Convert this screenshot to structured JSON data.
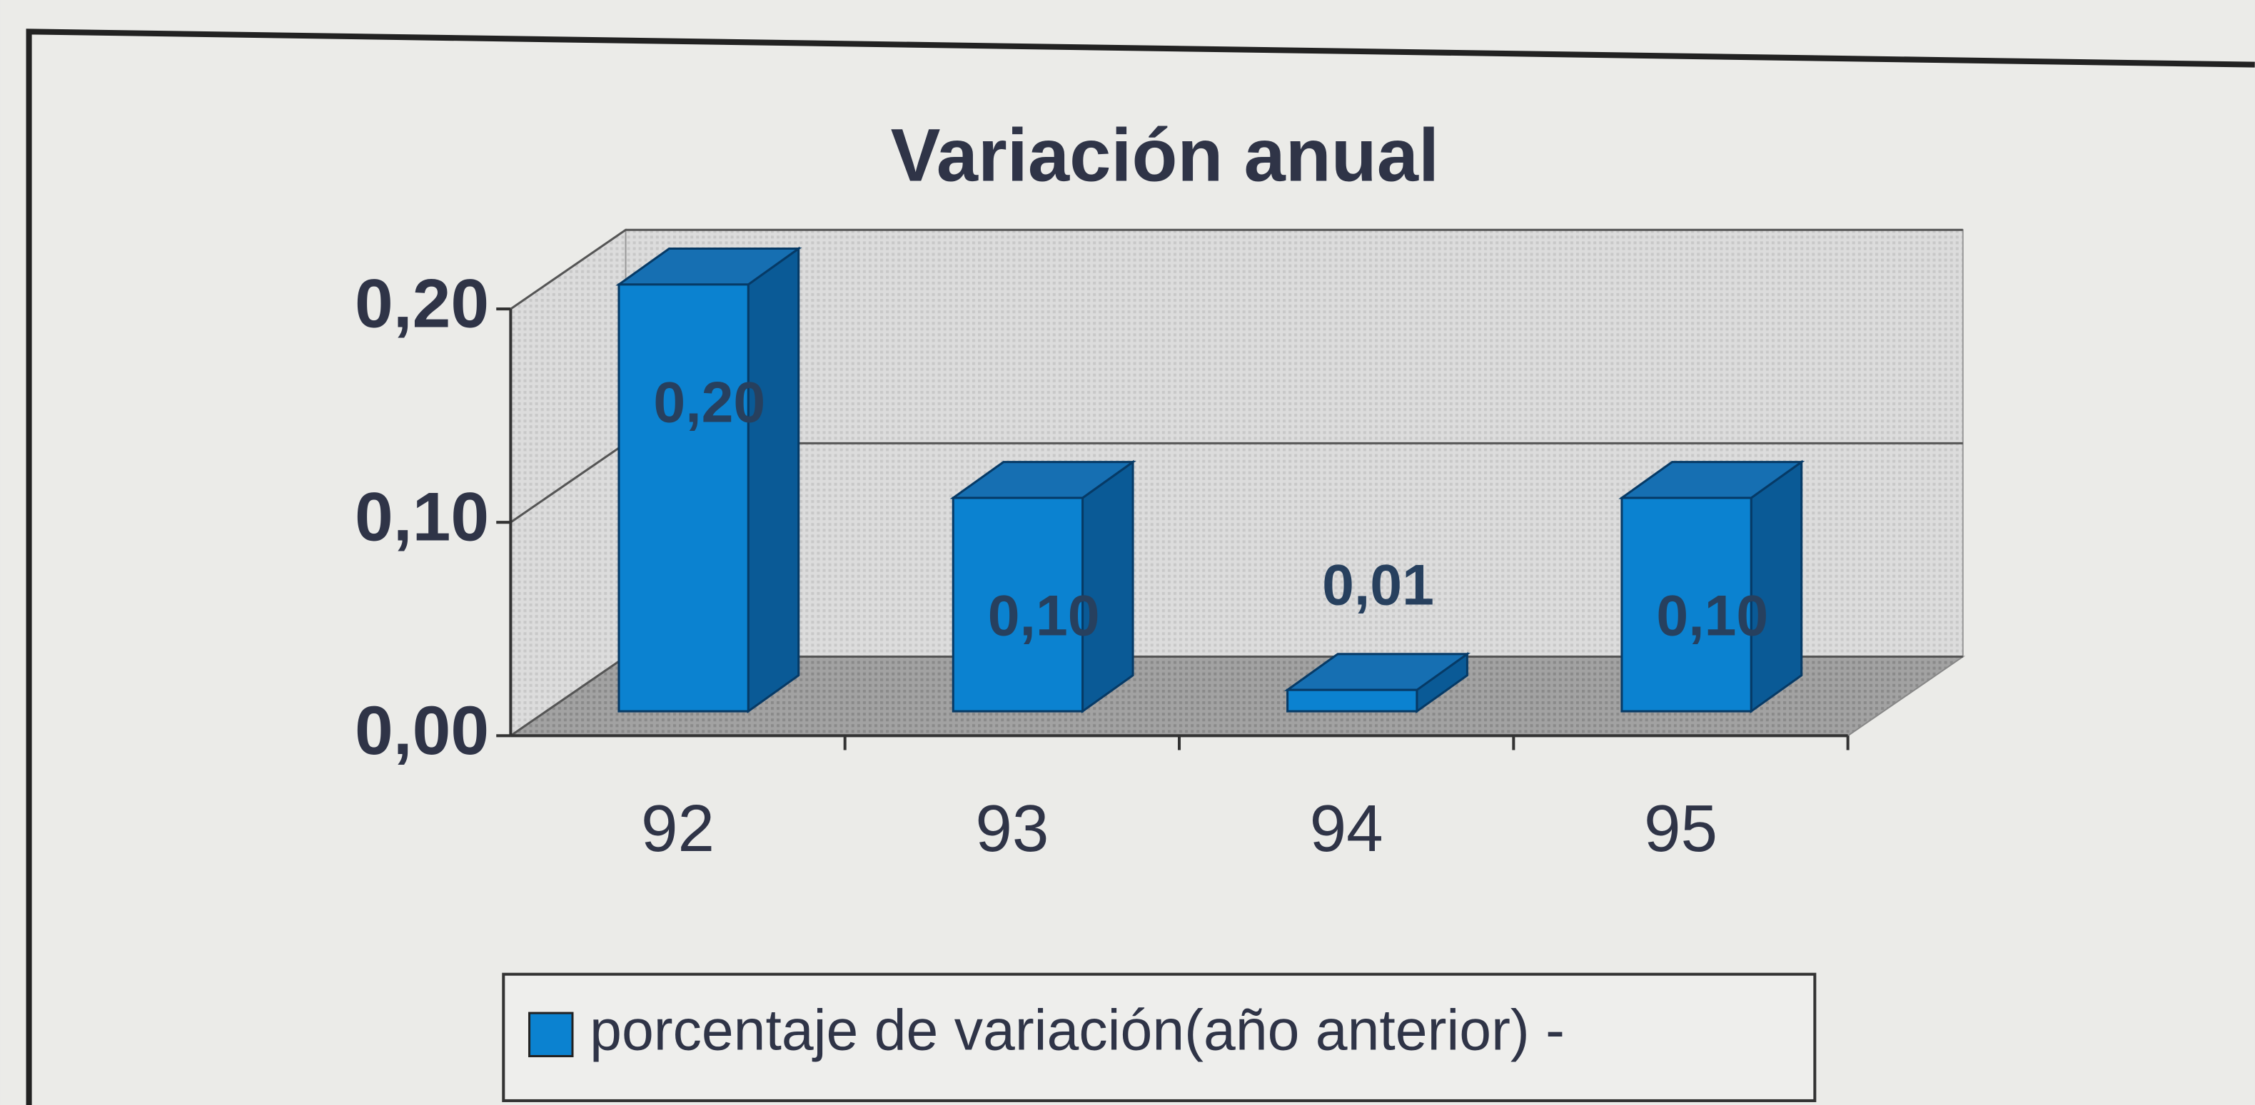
{
  "chart_data": {
    "type": "bar3d",
    "title": "Variación anual",
    "categories": [
      "92",
      "93",
      "94",
      "95"
    ],
    "series": [
      {
        "name": "porcentaje de variación(año anterior) -",
        "color": "#0b82d0",
        "values": [
          0.2,
          0.1,
          0.01,
          0.1
        ],
        "value_labels": [
          "0,20",
          "0,10",
          "0,01",
          "0,10"
        ]
      }
    ],
    "ylim": [
      0,
      0.2
    ],
    "yticks": [
      {
        "value": 0,
        "label": "0,00"
      },
      {
        "value": 0.1,
        "label": "0,10"
      },
      {
        "value": 0.2,
        "label": "0,20"
      }
    ],
    "grid": true,
    "legend": "bottom"
  }
}
